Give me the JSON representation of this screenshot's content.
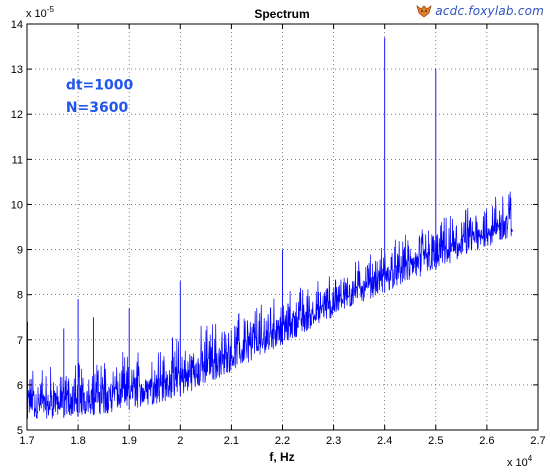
{
  "watermark": {
    "text": "acdc.foxylab.com",
    "icon": "fox-logo-icon"
  },
  "chart_data": {
    "type": "line",
    "title": "Spectrum",
    "xlabel": "f, Hz",
    "ylabel": "",
    "x_exponent_label": "x 10",
    "x_exponent": "4",
    "y_exponent_label": "x 10",
    "y_exponent": "-5",
    "xlim": [
      1.7,
      2.7
    ],
    "ylim": [
      5,
      14
    ],
    "xticks": [
      1.7,
      1.8,
      1.9,
      2.0,
      2.1,
      2.2,
      2.3,
      2.4,
      2.5,
      2.6,
      2.7
    ],
    "xtick_labels": [
      "1.7",
      "1.8",
      "1.9",
      "2",
      "2.1",
      "2.2",
      "2.3",
      "2.4",
      "2.5",
      "2.6",
      "2.7"
    ],
    "yticks": [
      5,
      6,
      7,
      8,
      9,
      10,
      11,
      12,
      13,
      14
    ],
    "ytick_labels": [
      "5",
      "6",
      "7",
      "8",
      "9",
      "10",
      "11",
      "12",
      "13",
      "14"
    ],
    "grid": true,
    "line_color": "#0000ff",
    "annotations": [
      {
        "text": "dt=1000",
        "x": 1.776,
        "y": 12.55,
        "color": "#2255ee"
      },
      {
        "text": "N=3600",
        "x": 1.776,
        "y": 12.05,
        "color": "#2255ee"
      }
    ],
    "x_range": [
      1.7,
      2.65
    ],
    "baseline": [
      [
        1.7,
        5.25
      ],
      [
        1.75,
        5.25
      ],
      [
        1.8,
        5.3
      ],
      [
        1.85,
        5.35
      ],
      [
        1.9,
        5.45
      ],
      [
        1.95,
        5.55
      ],
      [
        2.0,
        5.75
      ],
      [
        2.05,
        6.0
      ],
      [
        2.1,
        6.3
      ],
      [
        2.15,
        6.6
      ],
      [
        2.2,
        6.9
      ],
      [
        2.25,
        7.2
      ],
      [
        2.3,
        7.5
      ],
      [
        2.35,
        7.8
      ],
      [
        2.4,
        8.05
      ],
      [
        2.45,
        8.3
      ],
      [
        2.5,
        8.55
      ],
      [
        2.55,
        8.8
      ],
      [
        2.6,
        9.05
      ],
      [
        2.65,
        9.3
      ]
    ],
    "envelope": [
      [
        1.7,
        6.3
      ],
      [
        1.75,
        6.3
      ],
      [
        1.8,
        6.35
      ],
      [
        1.85,
        6.45
      ],
      [
        1.9,
        6.55
      ],
      [
        1.95,
        6.7
      ],
      [
        2.0,
        6.9
      ],
      [
        2.05,
        7.15
      ],
      [
        2.1,
        7.4
      ],
      [
        2.15,
        7.6
      ],
      [
        2.2,
        7.85
      ],
      [
        2.25,
        8.1
      ],
      [
        2.3,
        8.35
      ],
      [
        2.35,
        8.65
      ],
      [
        2.4,
        8.95
      ],
      [
        2.45,
        9.2
      ],
      [
        2.5,
        9.45
      ],
      [
        2.55,
        9.7
      ],
      [
        2.6,
        9.95
      ],
      [
        2.65,
        10.3
      ]
    ],
    "peaks": [
      {
        "x": 1.701,
        "y": 7.4
      },
      {
        "x": 1.772,
        "y": 7.25
      },
      {
        "x": 1.8,
        "y": 7.9
      },
      {
        "x": 1.83,
        "y": 7.5
      },
      {
        "x": 1.9,
        "y": 7.7
      },
      {
        "x": 2.0,
        "y": 8.3
      },
      {
        "x": 2.2,
        "y": 9.0
      },
      {
        "x": 2.4,
        "y": 13.7
      },
      {
        "x": 2.5,
        "y": 13.0
      }
    ]
  }
}
